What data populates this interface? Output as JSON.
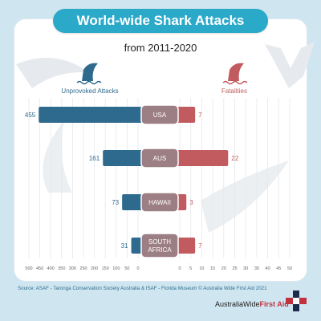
{
  "title": "World-wide Shark Attacks",
  "subtitle": "from  2011-2020",
  "colors": {
    "background": "#cfe6f1",
    "title_pill": "#2aa9c9",
    "attacks": "#2e6a8e",
    "fatalities": "#c25b5f",
    "label_box": "#9c7e85"
  },
  "chart_data": {
    "type": "bar",
    "categories": [
      "USA",
      "AUS",
      "HAWAII",
      "SOUTH AFRICA"
    ],
    "category_lines": [
      [
        "USA"
      ],
      [
        "AUS"
      ],
      [
        "HAWAII"
      ],
      [
        "SOUTH",
        "AFRICA"
      ]
    ],
    "series": [
      {
        "name": "Unprovoked Attacks",
        "values": [
          455,
          161,
          73,
          31
        ]
      },
      {
        "name": "Fatalities",
        "values": [
          7,
          22,
          3,
          7
        ]
      }
    ],
    "left_axis": {
      "range": [
        0,
        500
      ],
      "ticks": [
        500,
        450,
        400,
        350,
        300,
        250,
        200,
        150,
        100,
        50,
        0
      ]
    },
    "right_axis": {
      "range": [
        0,
        50
      ],
      "ticks": [
        0,
        5,
        10,
        15,
        20,
        25,
        30,
        35,
        40,
        45,
        50
      ]
    },
    "grid": true,
    "legend": "above bars, left and right"
  },
  "source": "Source: ASAF - Taronga Conservation Society Australia & ISAF - Florida Museum © Australia Wide First Aid 2021",
  "brand": {
    "name_regular": "AustraliaWide",
    "name_bold": "First Aid"
  }
}
